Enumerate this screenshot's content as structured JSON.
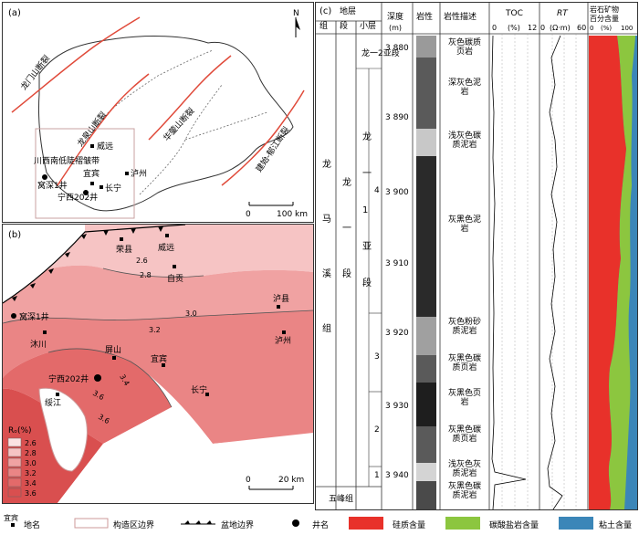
{
  "panel_a": {
    "label": "(a)",
    "north": "N",
    "faults": {
      "longmenshan": "龙门山断裂",
      "longquanshan": "龙泉山断裂",
      "huayingshan": "华蓥山断裂",
      "jianshi_yujiang": "建始-郁江断裂"
    },
    "region": "川西南低陡褶皱带",
    "places": {
      "weiyuan": "威远",
      "luzhou": "泸州",
      "yibin": "宜宾",
      "changning": "长宁"
    },
    "wells": {
      "woshen1": "窝深1井",
      "ningxi202": "宁西202井"
    },
    "scale": {
      "zero": "0",
      "dist": "100 km"
    }
  },
  "panel_b": {
    "label": "(b)",
    "places": {
      "rongxian": "荣县",
      "weiyuan": "威远",
      "zigong": "自贡",
      "luxian": "泸县",
      "muchuan": "沐川",
      "pingshan": "屏山",
      "yibin": "宜宾",
      "luzhou": "泸州",
      "changning": "长宁",
      "suijiang": "绥江"
    },
    "wells": {
      "woshen1": "窝深1井",
      "ningxi202": "宁西202井"
    },
    "contours": [
      "2.6",
      "2.8",
      "3.0",
      "3.2",
      "3.4",
      "3.6",
      "3.6"
    ],
    "legend_title": "Rₒ(%)",
    "legend": [
      {
        "value": "2.6",
        "color": "#fbe3e3"
      },
      {
        "value": "2.8",
        "color": "#f6c4c4"
      },
      {
        "value": "3.0",
        "color": "#f0a2a2"
      },
      {
        "value": "3.2",
        "color": "#ea8585"
      },
      {
        "value": "3.4",
        "color": "#e36a6a"
      },
      {
        "value": "3.6",
        "color": "#d94f4f"
      }
    ],
    "scale": {
      "zero": "0",
      "dist": "20 km"
    }
  },
  "panel_c": {
    "label": "(c)",
    "header": {
      "strata": "地层",
      "group": "组",
      "section": "段",
      "sublayer": "小层",
      "depth": "深度",
      "depth_unit": "(m)",
      "lithology": "岩性",
      "lith_desc": "岩性描述",
      "toc": "TOC",
      "toc_unit": "(%)",
      "toc_min": "0",
      "toc_max": "12",
      "rt": "RT",
      "rt_unit": "(Ω·m)",
      "rt_min": "0",
      "rt_max": "60",
      "mineral_title_1": "岩石矿物",
      "mineral_title_2": "百分含量",
      "mineral_unit": "(%)",
      "mineral_min": "0",
      "mineral_max": "100"
    },
    "group_name": "龙马溪组",
    "section_name": "龙一段",
    "sub_name": "龙一1亚段",
    "sub2_name": "龙一2亚段",
    "wufeng": "五峰组",
    "sublayers": [
      "4",
      "3",
      "2",
      "1"
    ],
    "depth_ticks": [
      "3 880",
      "3 890",
      "3 900",
      "3 910",
      "3 920",
      "3 930",
      "3 940"
    ],
    "descriptions": [
      "灰色碳质页岩",
      "深灰色泥岩",
      "浅灰色碳质泥岩",
      "灰黑色泥岩",
      "灰色粉砂质泥岩",
      "灰黑色碳质页岩",
      "灰黑色页岩",
      "灰黑色碳质页岩",
      "浅灰色灰质泥岩",
      "灰黑色碳质泥岩"
    ]
  },
  "legend": {
    "place": "宜宾",
    "place_label": "地名",
    "structure": "构造区边界",
    "basin": "盆地边界",
    "well": "井名",
    "silica": "硅质含量",
    "carbonate": "碳酸盐岩含量",
    "clay": "粘土含量"
  },
  "colors": {
    "silica": "#e8312a",
    "carbonate": "#8cc63f",
    "clay": "#3b86b8"
  }
}
